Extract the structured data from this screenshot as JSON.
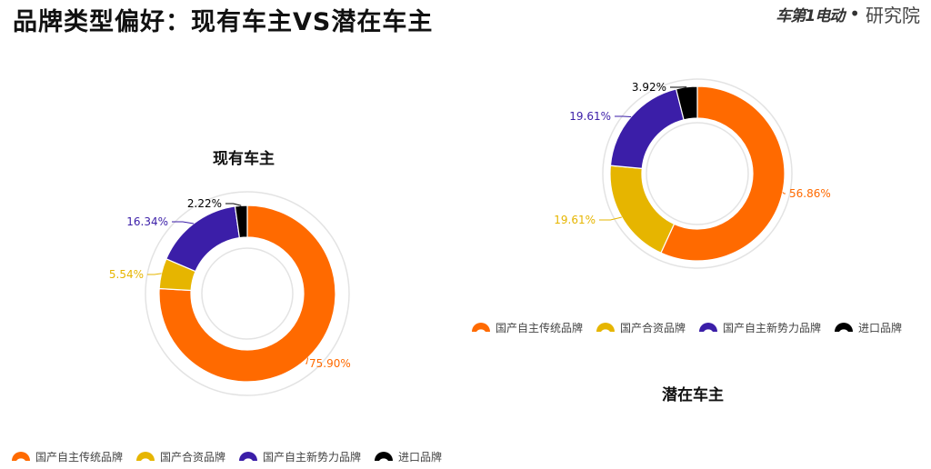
{
  "header": {
    "title": "品牌类型偏好：现有车主VS潜在车主",
    "brand_logo_text": "车第1电动",
    "brand_suffix": "研究院"
  },
  "colors": {
    "国产自主传统品牌": "#ff6a00",
    "国产合资品牌": "#e6b500",
    "国产自主新势力品牌": "#3b1ea8",
    "进口品牌": "#000000"
  },
  "chart_data": [
    {
      "type": "pie",
      "title": "现有车主",
      "categories": [
        "国产自主传统品牌",
        "国产合资品牌",
        "国产自主新势力品牌",
        "进口品牌"
      ],
      "values": [
        75.9,
        5.54,
        16.34,
        2.22
      ],
      "labels": [
        "75.90%",
        "5.54%",
        "16.34%",
        "2.22%"
      ],
      "legend": "bottom-left"
    },
    {
      "type": "pie",
      "title": "潜在车主",
      "categories": [
        "国产自主传统品牌",
        "国产合资品牌",
        "国产自主新势力品牌",
        "进口品牌"
      ],
      "values": [
        56.86,
        19.61,
        19.61,
        3.92
      ],
      "labels": [
        "56.86%",
        "19.61%",
        "19.61%",
        "3.92%"
      ],
      "legend": "top"
    }
  ],
  "legend_items": [
    "国产自主传统品牌",
    "国产合资品牌",
    "国产自主新势力品牌",
    "进口品牌"
  ]
}
